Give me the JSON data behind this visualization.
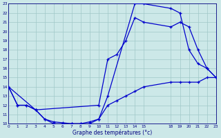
{
  "xlabel": "Graphe des températures (°c)",
  "bg_color": "#cce8e8",
  "grid_color": "#a0c8c8",
  "line_color": "#0000cc",
  "line1": {
    "x": [
      0,
      1,
      2,
      3,
      4,
      5,
      6,
      7,
      8,
      9,
      10,
      11,
      14,
      15,
      18,
      19,
      20,
      21,
      22,
      23
    ],
    "y": [
      14,
      12,
      12,
      11.5,
      10.5,
      10,
      10,
      10,
      10,
      10,
      10.5,
      13,
      23,
      23,
      22.5,
      22,
      18,
      16.5,
      16,
      15
    ]
  },
  "line2": {
    "x": [
      0,
      3,
      10,
      11,
      12,
      13,
      14,
      15,
      18,
      19,
      20,
      21,
      22,
      23
    ],
    "y": [
      14,
      11.5,
      12,
      17,
      17.5,
      19,
      21.5,
      21,
      20.5,
      21,
      20.5,
      18,
      16,
      15
    ]
  },
  "line3": {
    "x": [
      0,
      1,
      2,
      3,
      4,
      5,
      6,
      7,
      8,
      9,
      10,
      11,
      12,
      13,
      14,
      15,
      18,
      19,
      20,
      21,
      22,
      23
    ],
    "y": [
      14,
      12,
      12,
      11.5,
      10.5,
      10.2,
      10.1,
      10,
      10,
      10.2,
      10.5,
      12,
      12.5,
      13,
      13.5,
      14,
      14.5,
      14.5,
      14.5,
      14.5,
      15,
      15
    ]
  },
  "ylim": [
    10,
    23
  ],
  "xlim": [
    0,
    23
  ],
  "yticks": [
    10,
    11,
    12,
    13,
    14,
    15,
    16,
    17,
    18,
    19,
    20,
    21,
    22,
    23
  ],
  "xticks": [
    0,
    1,
    2,
    3,
    4,
    5,
    6,
    7,
    8,
    9,
    10,
    11,
    12,
    13,
    14,
    15,
    18,
    19,
    20,
    21,
    22,
    23
  ]
}
